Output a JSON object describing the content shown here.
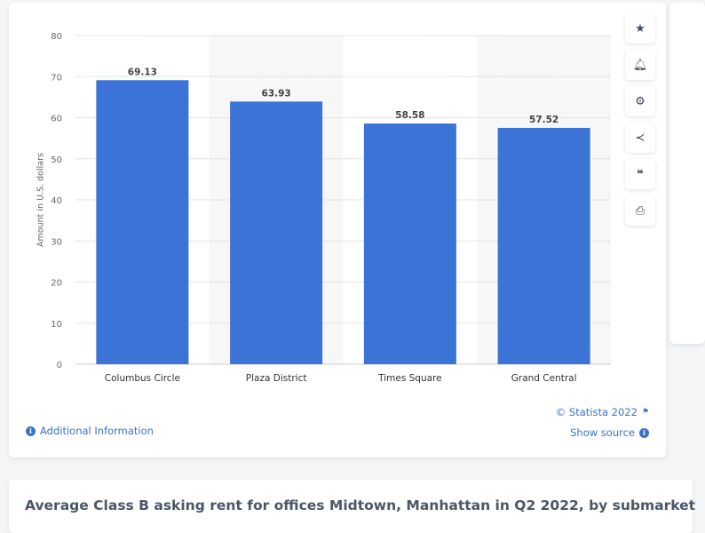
{
  "chart_data": {
    "type": "bar",
    "title": "Average Class B asking rent for offices Midtown, Manhattan in Q2 2022, by submarket",
    "categories": [
      "Columbus Circle",
      "Plaza District",
      "Times Square",
      "Grand Central"
    ],
    "values": [
      69.13,
      63.93,
      58.58,
      57.52
    ],
    "value_labels": [
      "69.13",
      "63.93",
      "58.58",
      "57.52"
    ],
    "xlabel": "",
    "ylabel": "Amount in U.S. dollars",
    "ylim": [
      0,
      80
    ],
    "yticks": [
      "0",
      "10",
      "20",
      "30",
      "40",
      "50",
      "60",
      "70",
      "80"
    ],
    "grid": true,
    "bar_color": "#3b73d6"
  },
  "footer": {
    "copyright": "© Statista 2022",
    "additional_info": "Additional Information",
    "show_source": "Show source"
  },
  "toolbar": [
    "star-icon",
    "bell-icon",
    "gear-icon",
    "share-icon",
    "quote-icon",
    "print-icon"
  ]
}
